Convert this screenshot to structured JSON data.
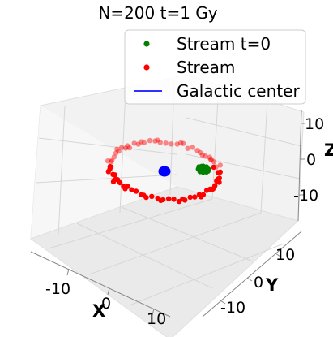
{
  "chart_data": {
    "type": "scatter",
    "projection": "3d",
    "title": "N=200 t=1 Gy",
    "xlabel": "X",
    "ylabel": "Y",
    "zlabel": "Z",
    "x_ticks": [
      "-10",
      "0",
      "10"
    ],
    "y_ticks": [
      "10",
      "0",
      "-10"
    ],
    "z_ticks": [
      "10",
      "0",
      "-10"
    ],
    "xlim": [
      -17,
      17
    ],
    "ylim": [
      -17,
      17
    ],
    "zlim": [
      -15,
      15
    ],
    "grid": true,
    "legend_position": "top-right",
    "legend": [
      {
        "label": "Stream t=0",
        "marker": "dot",
        "color": "#008000"
      },
      {
        "label": "Stream",
        "marker": "dot",
        "color": "#ff0000"
      },
      {
        "label": "Galactic center",
        "marker": "line",
        "color": "#3030ff"
      }
    ],
    "series": [
      {
        "name": "Stream t=0",
        "color": "#008000",
        "points": [
          {
            "x": 6.8,
            "y": 2.6,
            "z": -1.0
          },
          {
            "x": 7.4,
            "y": 2.9,
            "z": -1.2
          },
          {
            "x": 7.9,
            "y": 2.4,
            "z": -1.5
          },
          {
            "x": 6.9,
            "y": 3.0,
            "z": -1.8
          },
          {
            "x": 7.7,
            "y": 2.2,
            "z": -0.8
          },
          {
            "x": 8.2,
            "y": 2.8,
            "z": -1.3
          },
          {
            "x": 7.1,
            "y": 2.0,
            "z": -1.6
          },
          {
            "x": 6.6,
            "y": 2.7,
            "z": -1.4
          },
          {
            "x": 7.5,
            "y": 3.3,
            "z": -1.0
          },
          {
            "x": 8.0,
            "y": 2.1,
            "z": -1.9
          },
          {
            "x": 7.2,
            "y": 2.5,
            "z": -0.6
          },
          {
            "x": 6.5,
            "y": 2.3,
            "z": -1.1
          },
          {
            "x": 7.8,
            "y": 3.1,
            "z": -1.7
          },
          {
            "x": 7.0,
            "y": 2.8,
            "z": -2.1
          },
          {
            "x": 8.4,
            "y": 2.5,
            "z": -1.2
          },
          {
            "x": 7.6,
            "y": 1.9,
            "z": -1.3
          },
          {
            "x": 6.8,
            "y": 2.1,
            "z": -1.9
          },
          {
            "x": 7.3,
            "y": 3.4,
            "z": -1.5
          },
          {
            "x": 8.1,
            "y": 3.0,
            "z": -0.9
          },
          {
            "x": 7.4,
            "y": 2.2,
            "z": -2.2
          },
          {
            "x": 6.7,
            "y": 3.2,
            "z": -1.2
          },
          {
            "x": 7.9,
            "y": 2.7,
            "z": -2.0
          },
          {
            "x": 7.0,
            "y": 2.4,
            "z": -1.0
          },
          {
            "x": 7.6,
            "y": 2.6,
            "z": -1.6
          },
          {
            "x": 8.3,
            "y": 2.0,
            "z": -1.4
          },
          {
            "x": 7.2,
            "y": 3.0,
            "z": -0.7
          },
          {
            "x": 6.9,
            "y": 1.9,
            "z": -1.3
          },
          {
            "x": 7.7,
            "y": 3.5,
            "z": -1.8
          },
          {
            "x": 7.5,
            "y": 2.3,
            "z": -1.1
          },
          {
            "x": 8.0,
            "y": 3.2,
            "z": -1.5
          }
        ]
      },
      {
        "name": "Stream",
        "color": "#ff0000",
        "points": [
          {
            "x": 10.0,
            "y": 0.0,
            "z": 0.5
          },
          {
            "x": 9.8,
            "y": 2.1,
            "z": 0.3
          },
          {
            "x": 9.1,
            "y": 4.2,
            "z": 0.8
          },
          {
            "x": 8.1,
            "y": 5.9,
            "z": 0.2
          },
          {
            "x": 6.7,
            "y": 7.4,
            "z": 0.6
          },
          {
            "x": 5.0,
            "y": 8.7,
            "z": -0.2
          },
          {
            "x": 3.1,
            "y": 9.5,
            "z": 0.4
          },
          {
            "x": 1.0,
            "y": 9.9,
            "z": 0.1
          },
          {
            "x": -1.0,
            "y": 10.0,
            "z": 0.7
          },
          {
            "x": -3.1,
            "y": 9.5,
            "z": 0.3
          },
          {
            "x": -5.0,
            "y": 8.7,
            "z": 0.9
          },
          {
            "x": -6.7,
            "y": 7.4,
            "z": 0.2
          },
          {
            "x": -8.1,
            "y": 5.9,
            "z": 0.6
          },
          {
            "x": -9.1,
            "y": 4.2,
            "z": 0.1
          },
          {
            "x": -9.8,
            "y": 2.1,
            "z": 0.5
          },
          {
            "x": -10.0,
            "y": 0.0,
            "z": 0.8
          },
          {
            "x": -9.8,
            "y": -2.1,
            "z": 0.2
          },
          {
            "x": -9.1,
            "y": -4.2,
            "z": 0.6
          },
          {
            "x": -8.1,
            "y": -5.9,
            "z": -0.1
          },
          {
            "x": -6.7,
            "y": -7.4,
            "z": 0.4
          },
          {
            "x": -5.0,
            "y": -8.7,
            "z": 0.0
          },
          {
            "x": -3.1,
            "y": -9.5,
            "z": 0.5
          },
          {
            "x": -1.0,
            "y": -9.9,
            "z": -0.2
          },
          {
            "x": 1.0,
            "y": -10.0,
            "z": 0.3
          },
          {
            "x": 3.1,
            "y": -9.5,
            "z": -0.4
          },
          {
            "x": 5.0,
            "y": -8.7,
            "z": 0.1
          },
          {
            "x": 6.7,
            "y": -7.4,
            "z": -0.3
          },
          {
            "x": 8.1,
            "y": -5.9,
            "z": 0.4
          },
          {
            "x": 9.1,
            "y": -4.2,
            "z": -0.1
          },
          {
            "x": 9.8,
            "y": -2.1,
            "z": 0.2
          },
          {
            "x": 10.5,
            "y": 1.0,
            "z": -0.4
          },
          {
            "x": 9.5,
            "y": 3.2,
            "z": 1.1
          },
          {
            "x": 7.6,
            "y": 6.8,
            "z": -0.5
          },
          {
            "x": 4.2,
            "y": 9.3,
            "z": 1.0
          },
          {
            "x": 0.0,
            "y": 10.4,
            "z": -0.3
          },
          {
            "x": -4.2,
            "y": 9.2,
            "z": 0.0
          },
          {
            "x": -7.5,
            "y": 6.7,
            "z": 1.2
          },
          {
            "x": -9.6,
            "y": 3.3,
            "z": -0.3
          },
          {
            "x": -10.3,
            "y": -1.0,
            "z": 1.0
          },
          {
            "x": -9.4,
            "y": -3.3,
            "z": -0.4
          },
          {
            "x": -7.4,
            "y": -6.7,
            "z": 0.9
          },
          {
            "x": -4.1,
            "y": -9.1,
            "z": -0.5
          },
          {
            "x": 0.0,
            "y": -10.3,
            "z": 0.8
          },
          {
            "x": 4.1,
            "y": -9.2,
            "z": 0.5
          },
          {
            "x": 7.4,
            "y": -6.6,
            "z": 0.6
          },
          {
            "x": 9.5,
            "y": -3.2,
            "z": 0.7
          },
          {
            "x": 10.2,
            "y": -1.0,
            "z": -0.6
          },
          {
            "x": 9.0,
            "y": 5.0,
            "z": 0.0
          },
          {
            "x": 5.9,
            "y": 8.2,
            "z": 0.9
          },
          {
            "x": 2.0,
            "y": 9.9,
            "z": -0.1
          },
          {
            "x": -2.0,
            "y": 9.8,
            "z": 1.0
          },
          {
            "x": -5.9,
            "y": 8.1,
            "z": -0.4
          },
          {
            "x": -8.7,
            "y": 5.0,
            "z": 0.8
          },
          {
            "x": -10.1,
            "y": 1.0,
            "z": -0.2
          },
          {
            "x": -9.5,
            "y": -3.0,
            "z": 1.1
          },
          {
            "x": -8.7,
            "y": -5.0,
            "z": 0.3
          },
          {
            "x": -5.9,
            "y": -8.1,
            "z": 0.7
          },
          {
            "x": -2.0,
            "y": -9.8,
            "z": 0.2
          },
          {
            "x": 2.0,
            "y": -9.9,
            "z": -0.6
          },
          {
            "x": 5.9,
            "y": -8.2,
            "z": 0.6
          },
          {
            "x": 8.7,
            "y": -5.0,
            "z": -0.5
          },
          {
            "x": 10.6,
            "y": 2.4,
            "z": 0.8
          },
          {
            "x": 8.8,
            "y": 4.6,
            "z": 1.3
          },
          {
            "x": 7.2,
            "y": 7.0,
            "z": 0.3
          },
          {
            "x": 3.8,
            "y": 9.8,
            "z": 0.6
          },
          {
            "x": -0.5,
            "y": 10.6,
            "z": 0.4
          },
          {
            "x": -3.6,
            "y": 10.1,
            "z": 0.0
          },
          {
            "x": -6.3,
            "y": 8.0,
            "z": 0.5
          },
          {
            "x": -8.4,
            "y": 6.3,
            "z": 0.9
          },
          {
            "x": -10.4,
            "y": 2.6,
            "z": 0.2
          },
          {
            "x": -10.6,
            "y": -1.5,
            "z": 0.6
          },
          {
            "x": -9.9,
            "y": -4.6,
            "z": 0.1
          },
          {
            "x": -7.9,
            "y": -7.2,
            "z": 0.5
          },
          {
            "x": -4.6,
            "y": -9.6,
            "z": 0.9
          },
          {
            "x": -1.5,
            "y": -10.6,
            "z": 0.3
          },
          {
            "x": 2.6,
            "y": -10.2,
            "z": 0.8
          },
          {
            "x": 6.2,
            "y": -8.6,
            "z": 0.2
          },
          {
            "x": 8.5,
            "y": -6.3,
            "z": 0.9
          },
          {
            "x": 10.0,
            "y": -3.0,
            "z": 0.0
          },
          {
            "x": 9.3,
            "y": 1.4,
            "z": 1.0
          }
        ]
      },
      {
        "name": "Galactic center",
        "color": "#0000ff",
        "points": [
          {
            "x": 0.0,
            "y": 0.0,
            "z": 0.0
          }
        ]
      }
    ]
  }
}
